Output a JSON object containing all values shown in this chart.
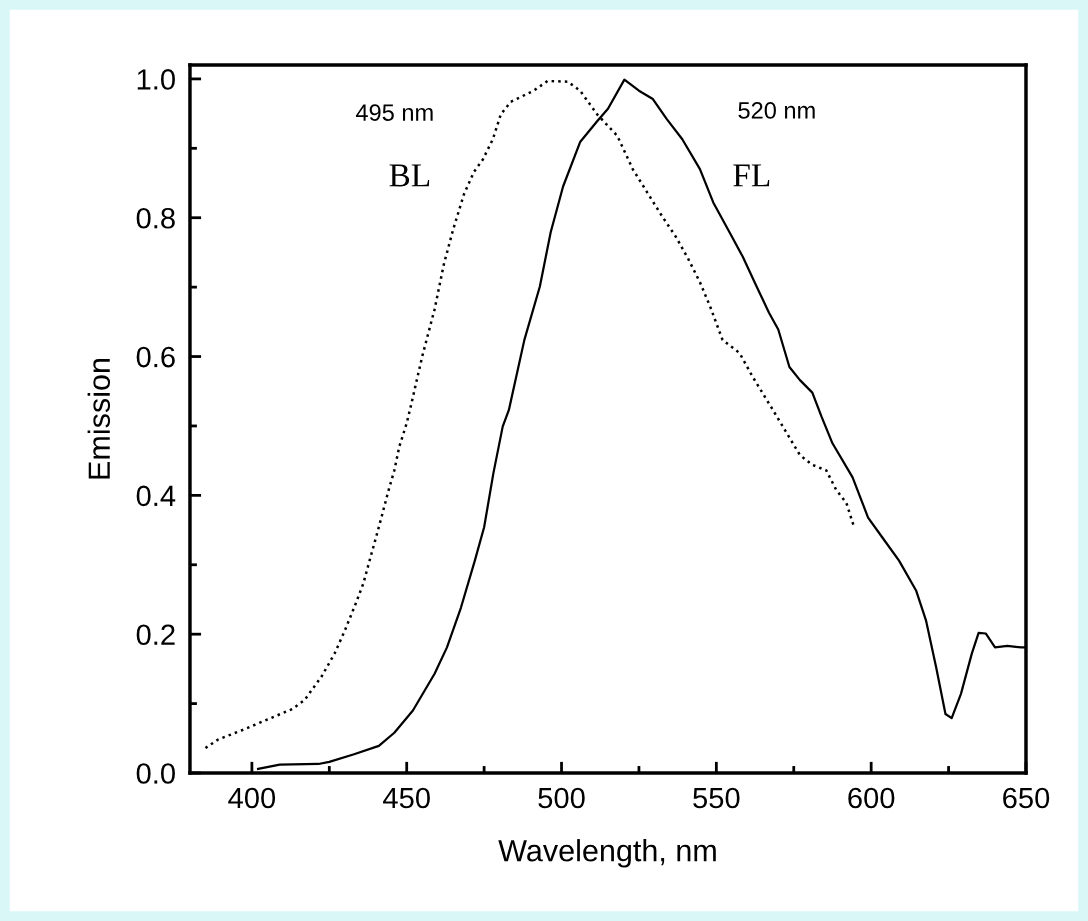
{
  "chart_data": {
    "type": "line",
    "xlabel": "Wavelength, nm",
    "ylabel": "Emission",
    "xlim": [
      380,
      650
    ],
    "ylim": [
      0,
      1.02
    ],
    "xticks": [
      {
        "value": 400,
        "label": "400"
      },
      {
        "value": 425,
        "label": null
      },
      {
        "value": 450,
        "label": "450"
      },
      {
        "value": 475,
        "label": null
      },
      {
        "value": 500,
        "label": "500"
      },
      {
        "value": 525,
        "label": null
      },
      {
        "value": 550,
        "label": "550"
      },
      {
        "value": 575,
        "label": null
      },
      {
        "value": 600,
        "label": "600"
      },
      {
        "value": 625,
        "label": null
      },
      {
        "value": 650,
        "label": "650"
      }
    ],
    "yticks": [
      {
        "value": 0,
        "label": "0.0"
      },
      {
        "value": 0.1,
        "label": null
      },
      {
        "value": 0.2,
        "label": "0.2"
      },
      {
        "value": 0.3,
        "label": null
      },
      {
        "value": 0.4,
        "label": "0.4"
      },
      {
        "value": 0.5,
        "label": null
      },
      {
        "value": 0.6,
        "label": "0.6"
      },
      {
        "value": 0.7,
        "label": null
      },
      {
        "value": 0.8,
        "label": "0.8"
      },
      {
        "value": 0.9,
        "label": null
      },
      {
        "value": 1.0,
        "label": "1.0"
      }
    ],
    "grid": false,
    "legend": false,
    "marker": "none",
    "series": [
      {
        "color": "#000000",
        "line_style": "dotted",
        "x": [
          385,
          389,
          397,
          405.5,
          413,
          417,
          422.5,
          426.7,
          430,
          433,
          436,
          438,
          440,
          442,
          444,
          446,
          447.6,
          450,
          451.4,
          455,
          459,
          462,
          465,
          468.5,
          471.7,
          474.6,
          477.8,
          480.4,
          483.6,
          491,
          495.5,
          502,
          506,
          511.5,
          518,
          523,
          527.6,
          532.5,
          537,
          541,
          544.7,
          548,
          552,
          557.5,
          561.7,
          568,
          572.7,
          577,
          581,
          585.5,
          588.7,
          592,
          594.5
        ],
        "values": [
          0.036,
          0.048,
          0.062,
          0.078,
          0.092,
          0.105,
          0.139,
          0.172,
          0.205,
          0.238,
          0.273,
          0.306,
          0.338,
          0.371,
          0.405,
          0.436,
          0.47,
          0.504,
          0.53,
          0.6,
          0.668,
          0.733,
          0.783,
          0.834,
          0.866,
          0.884,
          0.913,
          0.949,
          0.967,
          0.983,
          0.997,
          0.996,
          0.983,
          0.949,
          0.918,
          0.87,
          0.837,
          0.802,
          0.772,
          0.74,
          0.707,
          0.672,
          0.624,
          0.605,
          0.571,
          0.525,
          0.49,
          0.458,
          0.444,
          0.436,
          0.408,
          0.389,
          0.354
        ]
      },
      {
        "color": "#000000",
        "line_style": "solid",
        "x": [
          402,
          409,
          421.5,
          425,
          433,
          441,
          446,
          452,
          459,
          463,
          467.5,
          472,
          475,
          478,
          481,
          483,
          488,
          493,
          496.5,
          500.5,
          506,
          511.5,
          515,
          520.3,
          525,
          529.5,
          534,
          539,
          544.7,
          549,
          555,
          558.5,
          563,
          567,
          570,
          573.6,
          577,
          581,
          584,
          587.5,
          594,
          599,
          603.5,
          609,
          614.5,
          617.7,
          621,
          624,
          626,
          629,
          632.5,
          634.7,
          637,
          640,
          644,
          648.5,
          650
        ],
        "values": [
          0.006,
          0.012,
          0.013,
          0.016,
          0.027,
          0.039,
          0.058,
          0.09,
          0.143,
          0.181,
          0.238,
          0.306,
          0.354,
          0.432,
          0.499,
          0.523,
          0.624,
          0.701,
          0.779,
          0.845,
          0.909,
          0.939,
          0.957,
          0.999,
          0.983,
          0.971,
          0.942,
          0.913,
          0.87,
          0.822,
          0.773,
          0.744,
          0.701,
          0.663,
          0.639,
          0.585,
          0.566,
          0.548,
          0.513,
          0.475,
          0.426,
          0.368,
          0.34,
          0.306,
          0.263,
          0.22,
          0.152,
          0.085,
          0.079,
          0.114,
          0.172,
          0.202,
          0.201,
          0.181,
          0.183,
          0.181,
          0.181
        ]
      }
    ],
    "annotations": [
      "495 nm",
      "BL",
      "520 nm",
      "FL"
    ]
  }
}
